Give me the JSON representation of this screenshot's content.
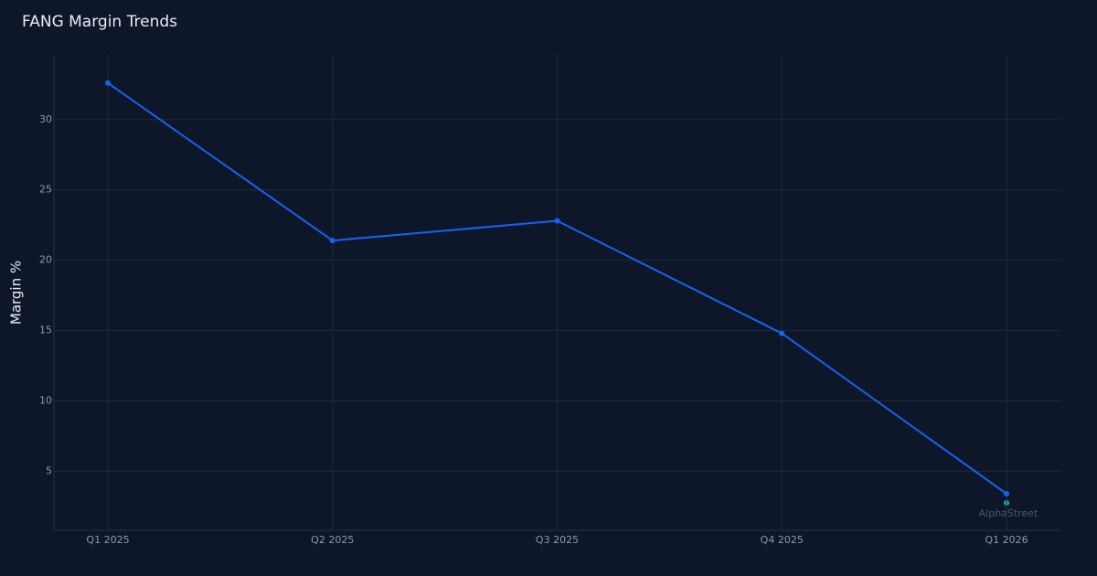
{
  "chart_data": {
    "type": "line",
    "title": "FANG Margin Trends",
    "y_label": "Margin %",
    "categories": [
      "Q1 2025",
      "Q2 2025",
      "Q3 2025",
      "Q4 2025",
      "Q1 2026"
    ],
    "series": [
      {
        "name": "Margin %",
        "color": "#1463f3",
        "values": [
          32.6,
          21.4,
          22.8,
          14.8,
          3.4
        ]
      }
    ],
    "ylim": [
      0.8,
      34.6
    ],
    "yticks": [
      5,
      10,
      15,
      20,
      25,
      30
    ],
    "grid": true,
    "watermark": "AlphaStreet"
  }
}
